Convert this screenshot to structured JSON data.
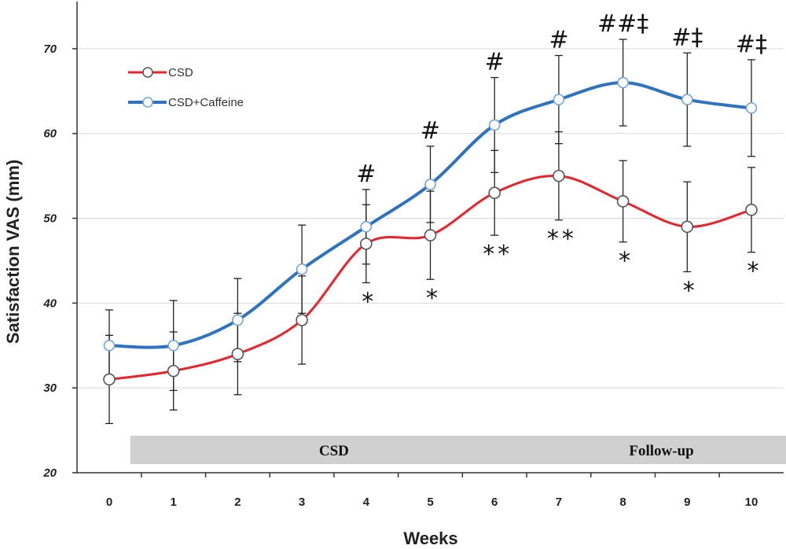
{
  "chart_data": {
    "type": "line",
    "xlabel": "Weeks",
    "ylabel": "Satisfaction VAS (mm)",
    "x": [
      0,
      1,
      2,
      3,
      4,
      5,
      6,
      7,
      8,
      9,
      10
    ],
    "xticks": [
      "0",
      "1",
      "2",
      "3",
      "4",
      "5",
      "6",
      "7",
      "8",
      "9",
      "10"
    ],
    "yticks": [
      "20",
      "30",
      "40",
      "50",
      "60",
      "70"
    ],
    "ylim": [
      20,
      75
    ],
    "grid": "horizontal",
    "legend_position": "top-left",
    "series": [
      {
        "name": "CSD",
        "color": "#e8242a",
        "values": [
          31,
          32,
          34,
          38,
          47,
          48,
          53,
          55,
          52,
          49,
          51
        ],
        "errors": [
          5.2,
          4.6,
          4.8,
          5.2,
          4.6,
          5.2,
          5.0,
          5.2,
          4.8,
          5.3,
          5.0
        ]
      },
      {
        "name": "CSD+Caffeine",
        "color": "#2f73c0",
        "values": [
          35,
          35,
          38,
          44,
          49,
          54,
          61,
          64,
          66,
          64,
          63
        ],
        "errors": [
          4.2,
          5.3,
          4.9,
          5.2,
          4.4,
          4.5,
          5.6,
          5.2,
          5.1,
          5.5,
          5.7
        ]
      }
    ],
    "phases": [
      {
        "label": "CSD",
        "from": 0.4,
        "to": 6.55
      },
      {
        "label": "Follow-up",
        "from": 6.65,
        "to": 10.5
      }
    ],
    "annotations_above": [
      {
        "x": 4,
        "text": "#"
      },
      {
        "x": 5,
        "text": "#"
      },
      {
        "x": 6,
        "text": "#"
      },
      {
        "x": 7,
        "text": "#"
      },
      {
        "x": 8,
        "text": "##‡"
      },
      {
        "x": 9,
        "text": "#‡"
      },
      {
        "x": 10,
        "text": "#‡"
      }
    ],
    "annotations_below": [
      {
        "x": 4,
        "text": "*"
      },
      {
        "x": 5,
        "text": "*"
      },
      {
        "x": 6,
        "text": "**"
      },
      {
        "x": 7,
        "text": "**"
      },
      {
        "x": 8,
        "text": "*"
      },
      {
        "x": 9,
        "text": "*"
      },
      {
        "x": 10,
        "text": "*"
      }
    ]
  }
}
